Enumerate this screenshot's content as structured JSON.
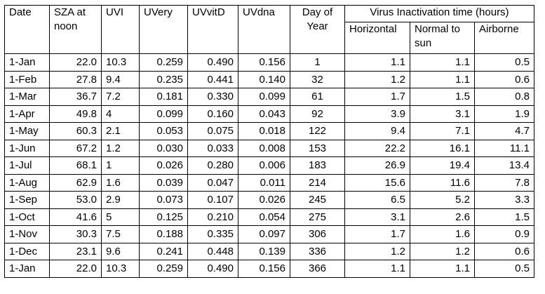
{
  "table": {
    "headers": {
      "date": "Date",
      "sza": "SZA at noon",
      "uvi": "UVI",
      "uvery": "UVery",
      "uvvitd": "UVvitD",
      "uvdna": "UVdna",
      "doy": "Day of Year",
      "virus_group": "Virus Inactivation time (hours)",
      "horizontal": "Horizontal",
      "normal": "Normal to sun",
      "airborne": "Airborne"
    },
    "rows": [
      [
        "1-Jan",
        "22.0",
        "10.3",
        "0.259",
        "0.490",
        "0.156",
        "1",
        "1.1",
        "1.1",
        "0.5"
      ],
      [
        "1-Feb",
        "27.8",
        "9.4",
        "0.235",
        "0.441",
        "0.140",
        "32",
        "1.2",
        "1.1",
        "0.6"
      ],
      [
        "1-Mar",
        "36.7",
        "7.2",
        "0.181",
        "0.330",
        "0.099",
        "61",
        "1.7",
        "1.5",
        "0.8"
      ],
      [
        "1-Apr",
        "49.8",
        "4",
        "0.099",
        "0.160",
        "0.043",
        "92",
        "3.9",
        "3.1",
        "1.9"
      ],
      [
        "1-May",
        "60.3",
        "2.1",
        "0.053",
        "0.075",
        "0.018",
        "122",
        "9.4",
        "7.1",
        "4.7"
      ],
      [
        "1-Jun",
        "67.2",
        "1.2",
        "0.030",
        "0.033",
        "0.008",
        "153",
        "22.2",
        "16.1",
        "11.1"
      ],
      [
        "1-Jul",
        "68.1",
        "1",
        "0.026",
        "0.280",
        "0.006",
        "183",
        "26.9",
        "19.4",
        "13.4"
      ],
      [
        "1-Aug",
        "62.9",
        "1.6",
        "0.039",
        "0.047",
        "0.011",
        "214",
        "15.6",
        "11.6",
        "7.8"
      ],
      [
        "1-Sep",
        "53.0",
        "2.9",
        "0.073",
        "0.107",
        "0.026",
        "245",
        "6.5",
        "5.2",
        "3.3"
      ],
      [
        "1-Oct",
        "41.6",
        "5",
        "0.125",
        "0.210",
        "0.054",
        "275",
        "3.1",
        "2.6",
        "1.5"
      ],
      [
        "1-Nov",
        "30.3",
        "7.5",
        "0.188",
        "0.335",
        "0.097",
        "306",
        "1.7",
        "1.6",
        "0.9"
      ],
      [
        "1-Dec",
        "23.1",
        "9.6",
        "0.241",
        "0.448",
        "0.139",
        "336",
        "1.2",
        "1.2",
        "0.6"
      ],
      [
        "1-Jan",
        "22.0",
        "10.3",
        "0.259",
        "0.490",
        "0.156",
        "366",
        "1.1",
        "1.1",
        "0.5"
      ]
    ]
  }
}
